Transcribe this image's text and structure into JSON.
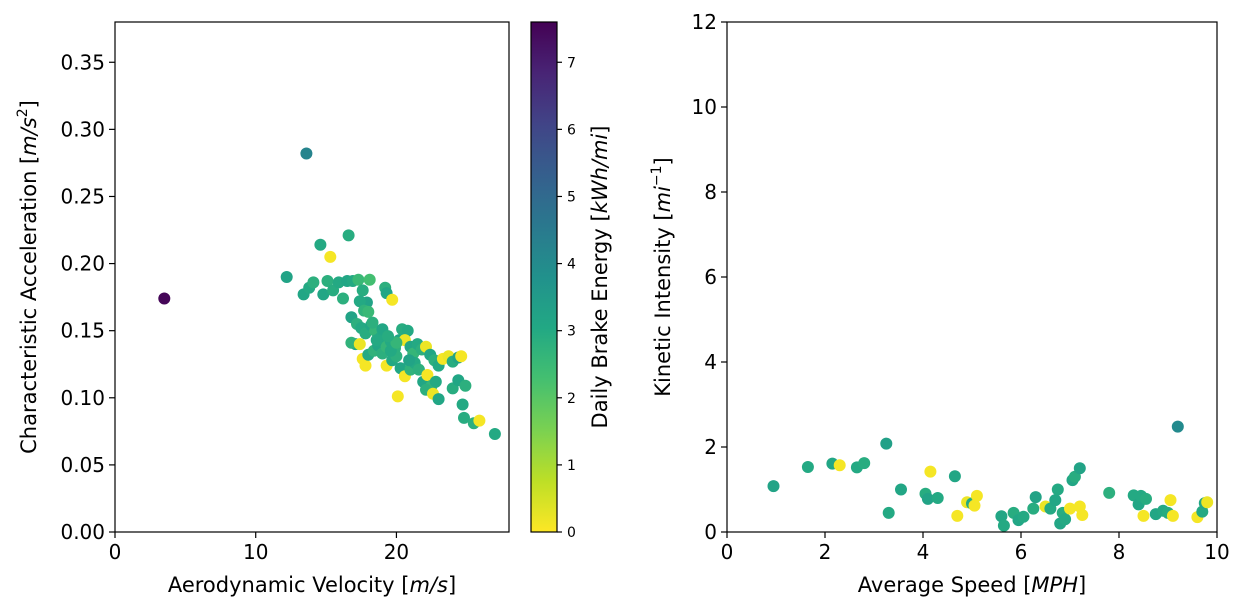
{
  "chart_data": [
    {
      "type": "scatter",
      "title": "",
      "xlabel": {
        "pre": "Aerodynamic Velocity [",
        "var": "m/s",
        "post": "]"
      },
      "ylabel": {
        "pre": "Characteristic Acceleration [",
        "var": "m/s",
        "sup": "2",
        "post": "]"
      },
      "xlim": [
        0,
        28
      ],
      "ylim": [
        0,
        0.38
      ],
      "xticks": [
        0,
        10,
        20
      ],
      "xtick_labels": [
        "0",
        "10",
        "20"
      ],
      "yticks": [
        0,
        0.05,
        0.1,
        0.15,
        0.2,
        0.25,
        0.3,
        0.35
      ],
      "ytick_labels": [
        "0.00",
        "0.05",
        "0.10",
        "0.15",
        "0.20",
        "0.25",
        "0.30",
        "0.35"
      ],
      "grid": false,
      "colormap": "viridis_r",
      "colorbar": {
        "label": {
          "pre": "Daily Brake Energy [",
          "var": "kWh/mi",
          "post": "]"
        },
        "range": [
          0,
          7.6
        ],
        "ticks": [
          0,
          1,
          2,
          3,
          4,
          5,
          6,
          7
        ],
        "tick_labels": [
          "0",
          "1",
          "2",
          "3",
          "4",
          "5",
          "6",
          "7"
        ]
      },
      "points": [
        [
          3.5,
          0.174,
          7.5
        ],
        [
          13.6,
          0.282,
          4.2
        ],
        [
          12.2,
          0.19,
          3.2
        ],
        [
          14.6,
          0.214,
          3.0
        ],
        [
          16.6,
          0.221,
          2.9
        ],
        [
          15.3,
          0.205,
          0.1
        ],
        [
          13.4,
          0.177,
          3.1
        ],
        [
          13.8,
          0.182,
          3.0
        ],
        [
          14.1,
          0.186,
          2.8
        ],
        [
          14.8,
          0.177,
          3.1
        ],
        [
          15.1,
          0.187,
          2.8
        ],
        [
          15.5,
          0.18,
          2.9
        ],
        [
          15.9,
          0.186,
          3.0
        ],
        [
          16.2,
          0.174,
          2.8
        ],
        [
          16.5,
          0.187,
          3.1
        ],
        [
          16.9,
          0.187,
          3.0
        ],
        [
          17.3,
          0.188,
          2.5
        ],
        [
          17.6,
          0.18,
          2.9
        ],
        [
          17.9,
          0.171,
          3.2
        ],
        [
          18.1,
          0.188,
          2.3
        ],
        [
          17.4,
          0.172,
          3.0
        ],
        [
          17.7,
          0.165,
          2.7
        ],
        [
          18.0,
          0.164,
          2.5
        ],
        [
          16.8,
          0.16,
          3.2
        ],
        [
          17.2,
          0.155,
          2.8
        ],
        [
          17.5,
          0.152,
          3.0
        ],
        [
          17.8,
          0.148,
          2.9
        ],
        [
          18.2,
          0.154,
          3.1
        ],
        [
          18.5,
          0.15,
          2.6
        ],
        [
          18.9,
          0.145,
          3.0
        ],
        [
          19.2,
          0.182,
          2.8
        ],
        [
          19.3,
          0.178,
          3.1
        ],
        [
          19.7,
          0.173,
          0.1
        ],
        [
          17.1,
          0.14,
          3.1
        ],
        [
          16.8,
          0.141,
          2.7
        ],
        [
          17.4,
          0.14,
          0.2
        ],
        [
          17.6,
          0.129,
          0.1
        ],
        [
          17.8,
          0.124,
          0.1
        ],
        [
          18.0,
          0.132,
          3.0
        ],
        [
          18.4,
          0.135,
          2.7
        ],
        [
          18.7,
          0.139,
          3.1
        ],
        [
          19.0,
          0.133,
          2.8
        ],
        [
          19.3,
          0.138,
          2.6
        ],
        [
          19.6,
          0.142,
          3.0
        ],
        [
          19.9,
          0.137,
          2.8
        ],
        [
          20.2,
          0.143,
          3.1
        ],
        [
          20.4,
          0.151,
          2.9
        ],
        [
          20.8,
          0.15,
          3.0
        ],
        [
          20.6,
          0.143,
          0.2
        ],
        [
          21.0,
          0.138,
          3.1
        ],
        [
          21.2,
          0.133,
          2.6
        ],
        [
          21.5,
          0.14,
          3.0
        ],
        [
          21.8,
          0.136,
          2.8
        ],
        [
          22.1,
          0.138,
          0.2
        ],
        [
          22.4,
          0.132,
          3.1
        ],
        [
          22.7,
          0.128,
          2.8
        ],
        [
          23.0,
          0.124,
          3.0
        ],
        [
          23.3,
          0.129,
          0.1
        ],
        [
          23.7,
          0.131,
          0.2
        ],
        [
          24.0,
          0.127,
          2.9
        ],
        [
          24.4,
          0.13,
          3.2
        ],
        [
          24.6,
          0.131,
          0.1
        ],
        [
          19.3,
          0.124,
          0.1
        ],
        [
          19.7,
          0.128,
          3.0
        ],
        [
          20.0,
          0.131,
          2.8
        ],
        [
          20.3,
          0.122,
          3.1
        ],
        [
          20.6,
          0.116,
          0.1
        ],
        [
          21.0,
          0.121,
          2.7
        ],
        [
          21.3,
          0.126,
          3.0
        ],
        [
          21.6,
          0.121,
          2.8
        ],
        [
          21.9,
          0.112,
          3.1
        ],
        [
          22.2,
          0.117,
          0.1
        ],
        [
          22.5,
          0.109,
          2.6
        ],
        [
          22.8,
          0.112,
          3.0
        ],
        [
          22.1,
          0.106,
          2.8
        ],
        [
          22.6,
          0.103,
          0.2
        ],
        [
          23.0,
          0.099,
          3.1
        ],
        [
          20.1,
          0.101,
          0.1
        ],
        [
          19.6,
          0.135,
          3.0
        ],
        [
          20.0,
          0.141,
          2.6
        ],
        [
          20.9,
          0.128,
          3.2
        ],
        [
          24.0,
          0.107,
          2.9
        ],
        [
          24.4,
          0.113,
          3.1
        ],
        [
          24.9,
          0.109,
          2.8
        ],
        [
          24.7,
          0.095,
          3.0
        ],
        [
          24.8,
          0.085,
          2.9
        ],
        [
          25.5,
          0.081,
          2.8
        ],
        [
          25.9,
          0.083,
          0.1
        ],
        [
          27.0,
          0.073,
          3.0
        ],
        [
          18.3,
          0.156,
          2.8
        ],
        [
          18.6,
          0.143,
          3.0
        ],
        [
          19.0,
          0.151,
          3.1
        ],
        [
          19.4,
          0.146,
          2.9
        ]
      ]
    },
    {
      "type": "scatter",
      "title": "",
      "xlabel": {
        "pre": "Average Speed [",
        "var": "MPH",
        "post": "]"
      },
      "ylabel": {
        "pre": "Kinetic Intensity [",
        "var": "mi",
        "sup": "−1",
        "post": "]"
      },
      "xlim": [
        0,
        10
      ],
      "ylim": [
        0,
        12
      ],
      "xticks": [
        0,
        2,
        4,
        6,
        8,
        10
      ],
      "xtick_labels": [
        "0",
        "2",
        "4",
        "6",
        "8",
        "10"
      ],
      "yticks": [
        0,
        2,
        4,
        6,
        8,
        10,
        12
      ],
      "ytick_labels": [
        "0",
        "2",
        "4",
        "6",
        "8",
        "10",
        "12"
      ],
      "grid": false,
      "colormap": "viridis_r",
      "color_range": [
        0,
        7.6
      ],
      "points": [
        [
          0.95,
          1.08,
          3.2
        ],
        [
          1.65,
          1.53,
          3.0
        ],
        [
          2.15,
          1.61,
          3.1
        ],
        [
          2.3,
          1.57,
          0.1
        ],
        [
          2.65,
          1.52,
          3.0
        ],
        [
          2.8,
          1.62,
          2.9
        ],
        [
          3.25,
          2.08,
          3.3
        ],
        [
          3.3,
          0.45,
          3.0
        ],
        [
          3.55,
          1.0,
          3.1
        ],
        [
          4.05,
          0.9,
          2.9
        ],
        [
          4.1,
          0.78,
          3.2
        ],
        [
          4.15,
          1.42,
          0.1
        ],
        [
          4.3,
          0.8,
          3.0
        ],
        [
          4.65,
          1.31,
          3.1
        ],
        [
          4.7,
          0.38,
          0.1
        ],
        [
          4.9,
          0.7,
          0.2
        ],
        [
          5.0,
          0.67,
          3.0
        ],
        [
          5.05,
          0.62,
          0.1
        ],
        [
          5.1,
          0.85,
          0.1
        ],
        [
          5.6,
          0.37,
          3.1
        ],
        [
          5.65,
          0.15,
          3.0
        ],
        [
          5.85,
          0.45,
          2.9
        ],
        [
          5.95,
          0.28,
          3.1
        ],
        [
          6.05,
          0.36,
          3.0
        ],
        [
          6.25,
          0.55,
          2.9
        ],
        [
          6.3,
          0.82,
          3.2
        ],
        [
          6.5,
          0.6,
          0.2
        ],
        [
          6.6,
          0.55,
          3.0
        ],
        [
          6.7,
          0.75,
          3.1
        ],
        [
          6.75,
          1.0,
          3.0
        ],
        [
          6.8,
          0.2,
          3.1
        ],
        [
          6.85,
          0.45,
          2.9
        ],
        [
          6.9,
          0.3,
          3.0
        ],
        [
          7.0,
          0.55,
          0.1
        ],
        [
          7.05,
          1.22,
          3.1
        ],
        [
          7.1,
          1.3,
          2.9
        ],
        [
          7.2,
          1.5,
          3.2
        ],
        [
          7.2,
          0.6,
          0.1
        ],
        [
          7.25,
          0.4,
          0.1
        ],
        [
          7.8,
          0.92,
          2.8
        ],
        [
          8.3,
          0.86,
          3.0
        ],
        [
          8.4,
          0.65,
          3.1
        ],
        [
          8.45,
          0.85,
          3.0
        ],
        [
          8.5,
          0.38,
          0.1
        ],
        [
          8.55,
          0.78,
          2.9
        ],
        [
          8.75,
          0.42,
          3.1
        ],
        [
          8.9,
          0.5,
          3.0
        ],
        [
          9.0,
          0.45,
          2.9
        ],
        [
          9.05,
          0.75,
          0.1
        ],
        [
          9.1,
          0.38,
          0.1
        ],
        [
          9.2,
          2.48,
          4.0
        ],
        [
          9.6,
          0.35,
          0.1
        ],
        [
          9.7,
          0.48,
          3.0
        ],
        [
          9.75,
          0.68,
          3.1
        ],
        [
          9.8,
          0.7,
          0.2
        ]
      ]
    }
  ]
}
